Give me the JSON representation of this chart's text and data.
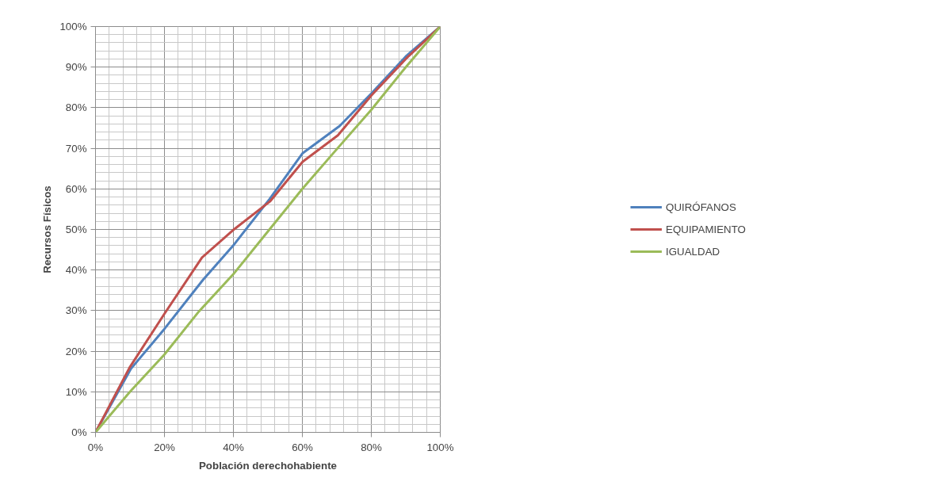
{
  "chart_data": {
    "type": "line",
    "xlabel": "Población derechohabiente",
    "ylabel": "Recursos Físicos",
    "xlim": [
      0,
      100
    ],
    "ylim": [
      0,
      100
    ],
    "xticks": [
      {
        "value": 0,
        "label": "0%"
      },
      {
        "value": 20,
        "label": "20%"
      },
      {
        "value": 40,
        "label": "40%"
      },
      {
        "value": 60,
        "label": "60%"
      },
      {
        "value": 80,
        "label": "80%"
      },
      {
        "value": 100,
        "label": "100%"
      }
    ],
    "yticks": [
      {
        "value": 0,
        "label": "0%"
      },
      {
        "value": 10,
        "label": "10%"
      },
      {
        "value": 20,
        "label": "20%"
      },
      {
        "value": 30,
        "label": "30%"
      },
      {
        "value": 40,
        "label": "40%"
      },
      {
        "value": 50,
        "label": "50%"
      },
      {
        "value": 60,
        "label": "60%"
      },
      {
        "value": 70,
        "label": "70%"
      },
      {
        "value": 80,
        "label": "80%"
      },
      {
        "value": 90,
        "label": "90%"
      },
      {
        "value": 100,
        "label": "100%"
      }
    ],
    "grid": true,
    "legend": "right",
    "marker": "none",
    "line_style": "solid",
    "series": [
      {
        "name": "QUIRÓFANOS",
        "color": "#4f81bd",
        "x": [
          0,
          10.3,
          20,
          31.2,
          40.3,
          50.5,
          60.1,
          70.8,
          80,
          90.2,
          100
        ],
        "values": [
          0,
          15.7,
          25.5,
          37.6,
          46.4,
          57.5,
          68.8,
          75.5,
          83.5,
          92.8,
          100
        ]
      },
      {
        "name": "EQUIPAMIENTO",
        "color": "#c0504d",
        "x": [
          0,
          9.9,
          19.9,
          30.9,
          40.3,
          50.6,
          60.1,
          70.3,
          80,
          90.2,
          100
        ],
        "values": [
          0,
          16,
          29.1,
          43.1,
          50.1,
          56.9,
          66.7,
          73.2,
          83,
          92.2,
          100
        ]
      },
      {
        "name": "IGUALDAD",
        "color": "#9bbb59",
        "x": [
          0,
          10,
          20,
          30,
          40,
          50,
          60,
          70,
          80,
          90,
          100
        ],
        "values": [
          0,
          10,
          19.2,
          29.8,
          39,
          49.5,
          60,
          69.8,
          79.5,
          90,
          100
        ]
      }
    ]
  }
}
